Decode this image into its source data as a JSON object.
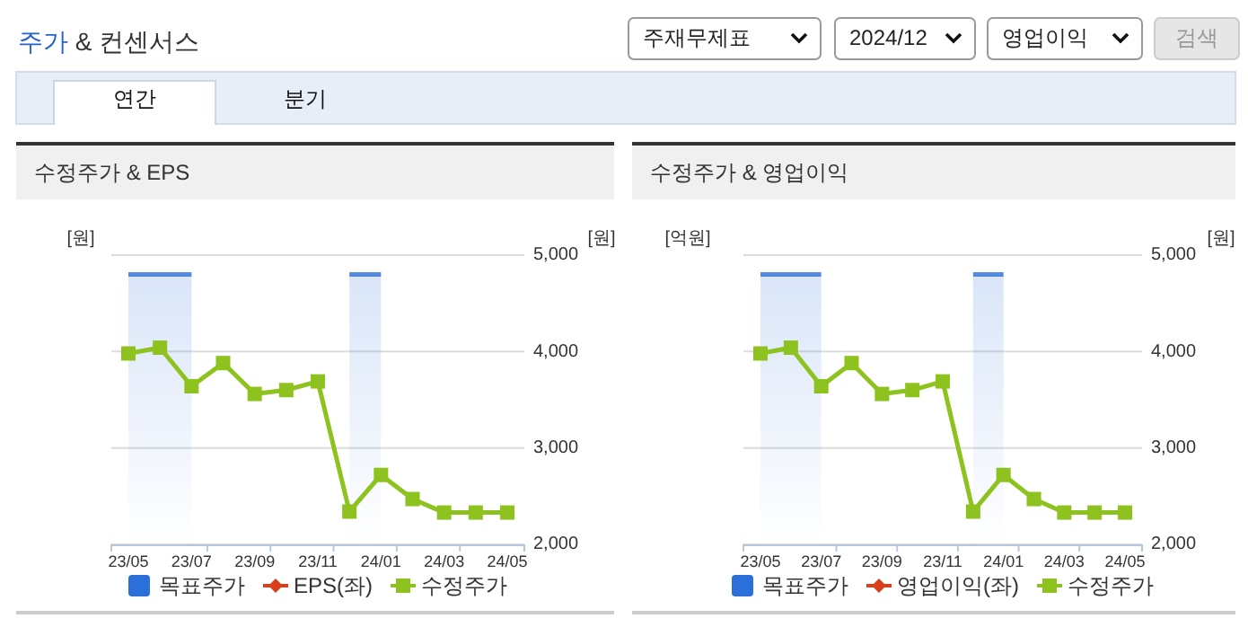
{
  "chart_data": [
    {
      "type": "other",
      "title": "주가 & 컨센서스",
      "annotations": [
        "주재무제표",
        "2024/12",
        "영업이익",
        "검색",
        "연간",
        "분기"
      ]
    },
    {
      "type": "line",
      "title": "수정주가 & EPS",
      "ylabel": "[원]",
      "y2label": "[원]",
      "categories": [
        "23/05",
        null,
        "23/07",
        null,
        "23/09",
        null,
        "23/11",
        null,
        "24/01",
        null,
        "24/03",
        null,
        "24/05"
      ],
      "y2lim": [
        2000,
        5000
      ],
      "y2ticks": [
        {
          "value": 2000,
          "label": "2,000"
        },
        {
          "value": 3000,
          "label": "3,000"
        },
        {
          "value": 4000,
          "label": "4,000"
        },
        {
          "value": 5000,
          "label": "5,000"
        }
      ],
      "grid": "y",
      "legend": "bottom",
      "series": [
        {
          "name": "목표주가",
          "type": "area",
          "color": "#2d6fd8",
          "axis": "y2",
          "values": [
            4800,
            4800,
            4800,
            null,
            null,
            null,
            null,
            4800,
            4800,
            null,
            null,
            null,
            null
          ]
        },
        {
          "name": "EPS(좌)",
          "color": "#d7401c",
          "marker": "diamond",
          "values": [
            null,
            null,
            null,
            null,
            null,
            null,
            null,
            null,
            null,
            null,
            null,
            null,
            null
          ]
        },
        {
          "name": "수정주가",
          "color": "#8dc21f",
          "axis": "y2",
          "marker": "square",
          "values": [
            3980,
            4040,
            3640,
            3880,
            3560,
            3600,
            3690,
            2340,
            2720,
            2470,
            2330,
            2330,
            2330
          ]
        }
      ]
    },
    {
      "type": "line",
      "title": "수정주가 & 영업이익",
      "ylabel": "[억원]",
      "y2label": "[원]",
      "categories": [
        "23/05",
        null,
        "23/07",
        null,
        "23/09",
        null,
        "23/11",
        null,
        "24/01",
        null,
        "24/03",
        null,
        "24/05"
      ],
      "y2lim": [
        2000,
        5000
      ],
      "y2ticks": [
        {
          "value": 2000,
          "label": "2,000"
        },
        {
          "value": 3000,
          "label": "3,000"
        },
        {
          "value": 4000,
          "label": "4,000"
        },
        {
          "value": 5000,
          "label": "5,000"
        }
      ],
      "grid": "y",
      "legend": "bottom",
      "series": [
        {
          "name": "목표주가",
          "type": "area",
          "color": "#2d6fd8",
          "axis": "y2",
          "values": [
            4800,
            4800,
            4800,
            null,
            null,
            null,
            null,
            4800,
            4800,
            null,
            null,
            null,
            null
          ]
        },
        {
          "name": "영업이익(좌)",
          "color": "#d7401c",
          "marker": "diamond",
          "values": [
            null,
            null,
            null,
            null,
            null,
            null,
            null,
            null,
            null,
            null,
            null,
            null,
            null
          ]
        },
        {
          "name": "수정주가",
          "color": "#8dc21f",
          "axis": "y2",
          "marker": "square",
          "values": [
            3980,
            4040,
            3640,
            3880,
            3560,
            3600,
            3690,
            2340,
            2720,
            2470,
            2330,
            2330,
            2330
          ]
        }
      ]
    }
  ]
}
